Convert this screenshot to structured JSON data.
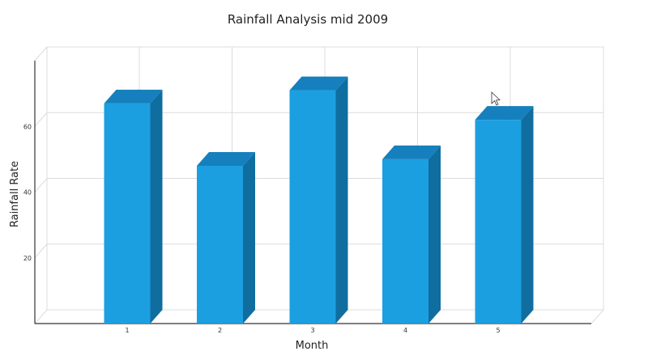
{
  "chart_data": {
    "type": "bar",
    "title": "Rainfall Analysis mid 2009",
    "xlabel": "Month",
    "ylabel": "Rainfall Rate",
    "categories": [
      "1",
      "2",
      "3",
      "4",
      "5"
    ],
    "series": [
      {
        "values": [
          67,
          48,
          71,
          50,
          62
        ]
      }
    ],
    "ylim": [
      0,
      80
    ],
    "yticks": [
      20,
      40,
      60
    ],
    "grid": true,
    "legend": "none",
    "style": "3d-column",
    "colors": {
      "bar_front": "#1c9fe0",
      "bar_top": "#1580bd",
      "bar_side": "#0f6e9f"
    }
  },
  "overlay": {
    "cursor": "pointer-arrow-icon"
  }
}
